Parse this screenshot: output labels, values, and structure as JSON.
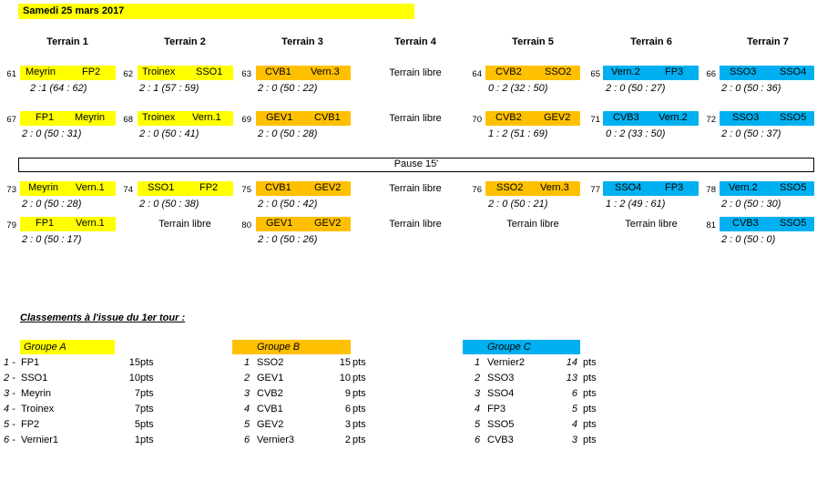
{
  "date": "Samedi 25 mars 2017",
  "terrains": [
    "Terrain 1",
    "Terrain 2",
    "Terrain 3",
    "Terrain 4",
    "Terrain 5",
    "Terrain 6",
    "Terrain 7"
  ],
  "pause": "Pause 15'",
  "libre": "Terrain libre",
  "colors": {
    "yellow": "#ffff00",
    "orange": "#ffc000",
    "blue": "#00b0f0"
  },
  "matches": [
    {
      "num": "61",
      "home": "Meyrin",
      "away": "FP2",
      "score": "2 :1 (64 : 62)",
      "color": "Y"
    },
    {
      "num": "62",
      "home": "Troinex",
      "away": "SSO1",
      "score": "2 : 1 (57 : 59)",
      "color": "Y"
    },
    {
      "num": "63",
      "home": "CVB1",
      "away": "Vern.3",
      "score": "2 : 0 (50 : 22)",
      "color": "O"
    },
    {
      "num": "64",
      "home": "CVB2",
      "away": "SSO2",
      "score": "0 : 2 (32 : 50)",
      "color": "O"
    },
    {
      "num": "65",
      "home": "Vern.2",
      "away": "FP3",
      "score": "2 : 0 (50 : 27)",
      "color": "B"
    },
    {
      "num": "66",
      "home": "SSO3",
      "away": "SSO4",
      "score": "2 : 0 (50 : 36)",
      "color": "B"
    },
    {
      "num": "67",
      "home": "FP1",
      "away": "Meyrin",
      "score": "2 : 0 (50 : 31)",
      "color": "Y"
    },
    {
      "num": "68",
      "home": "Troinex",
      "away": "Vern.1",
      "score": "2 : 0 (50 : 41)",
      "color": "Y"
    },
    {
      "num": "69",
      "home": "GEV1",
      "away": "CVB1",
      "score": "2 : 0 (50 : 28)",
      "color": "O"
    },
    {
      "num": "70",
      "home": "CVB2",
      "away": "GEV2",
      "score": "1 : 2 (51 : 69)",
      "color": "O"
    },
    {
      "num": "71",
      "home": "CVB3",
      "away": "Vern.2",
      "score": "0 : 2 (33 : 50)",
      "color": "B"
    },
    {
      "num": "72",
      "home": "SSO3",
      "away": "SSO5",
      "score": "2 : 0 (50 : 37)",
      "color": "B"
    },
    {
      "num": "73",
      "home": "Meyrin",
      "away": "Vern.1",
      "score": "2 : 0 (50 : 28)",
      "color": "Y"
    },
    {
      "num": "74",
      "home": "SSO1",
      "away": "FP2",
      "score": "2 : 0 (50 : 38)",
      "color": "Y"
    },
    {
      "num": "75",
      "home": "CVB1",
      "away": "GEV2",
      "score": "2 : 0 (50 : 42)",
      "color": "O"
    },
    {
      "num": "76",
      "home": "SSO2",
      "away": "Vern.3",
      "score": "2 : 0 (50 : 21)",
      "color": "O"
    },
    {
      "num": "77",
      "home": "SSO4",
      "away": "FP3",
      "score": "1 : 2 (49 : 61)",
      "color": "B"
    },
    {
      "num": "78",
      "home": "Vern.2",
      "away": "SSO5",
      "score": "2 : 0 (50 : 30)",
      "color": "B"
    },
    {
      "num": "79",
      "home": "FP1",
      "away": "Vern.1",
      "score": "2 : 0 (50 : 17)",
      "color": "Y"
    },
    {
      "num": "80",
      "home": "GEV1",
      "away": "GEV2",
      "score": "2 : 0 (50 : 26)",
      "color": "O"
    },
    {
      "num": "81",
      "home": "CVB3",
      "away": "SSO5",
      "score": "2 : 0 (50 : 0)",
      "color": "B"
    }
  ],
  "classements_title": "Classements à l'issue du 1er tour :",
  "groups": [
    {
      "name": "Groupe A",
      "rows": [
        {
          "rank": "1 -",
          "team": "FP1",
          "pts": "15",
          "unit": "pts"
        },
        {
          "rank": "2 -",
          "team": "SSO1",
          "pts": "10",
          "unit": "pts"
        },
        {
          "rank": "3 -",
          "team": "Meyrin",
          "pts": "7",
          "unit": "pts"
        },
        {
          "rank": "4 -",
          "team": "Troinex",
          "pts": "7",
          "unit": "pts"
        },
        {
          "rank": "5 -",
          "team": "FP2",
          "pts": "5",
          "unit": "pts"
        },
        {
          "rank": "6 -",
          "team": "Vernier1",
          "pts": "1",
          "unit": "pts"
        }
      ]
    },
    {
      "name": "Groupe B",
      "rows": [
        {
          "rank": "1",
          "team": "SSO2",
          "pts": "15",
          "unit": "pts"
        },
        {
          "rank": "2",
          "team": "GEV1",
          "pts": "10",
          "unit": "pts"
        },
        {
          "rank": "3",
          "team": "CVB2",
          "pts": "9",
          "unit": "pts"
        },
        {
          "rank": "4",
          "team": "CVB1",
          "pts": "6",
          "unit": "pts"
        },
        {
          "rank": "5",
          "team": "GEV2",
          "pts": "3",
          "unit": "pts"
        },
        {
          "rank": "6",
          "team": "Vernier3",
          "pts": "2",
          "unit": "pts"
        }
      ]
    },
    {
      "name": "Groupe C",
      "rows": [
        {
          "rank": "1",
          "team": "Vernier2",
          "pts": "14",
          "unit": "pts"
        },
        {
          "rank": "2",
          "team": "SSO3",
          "pts": "13",
          "unit": "pts"
        },
        {
          "rank": "3",
          "team": "SSO4",
          "pts": "6",
          "unit": "pts"
        },
        {
          "rank": "4",
          "team": "FP3",
          "pts": "5",
          "unit": "pts"
        },
        {
          "rank": "5",
          "team": "SSO5",
          "pts": "4",
          "unit": "pts"
        },
        {
          "rank": "6",
          "team": "CVB3",
          "pts": "3",
          "unit": "pts"
        }
      ]
    }
  ]
}
